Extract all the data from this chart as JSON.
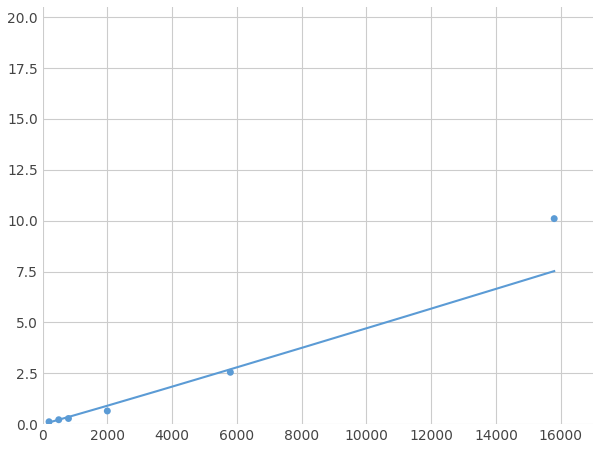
{
  "x": [
    200,
    500,
    800,
    2000,
    5800,
    15800
  ],
  "y": [
    0.12,
    0.22,
    0.28,
    0.65,
    2.55,
    10.1
  ],
  "line_color": "#5b9bd5",
  "marker_color": "#5b9bd5",
  "marker_size": 5,
  "line_width": 1.5,
  "xlim": [
    0,
    17000
  ],
  "ylim": [
    0,
    20.5
  ],
  "xticks": [
    0,
    2000,
    4000,
    6000,
    8000,
    10000,
    12000,
    14000,
    16000
  ],
  "yticks": [
    0.0,
    2.5,
    5.0,
    7.5,
    10.0,
    12.5,
    15.0,
    17.5,
    20.0
  ],
  "grid_color": "#cccccc",
  "background_color": "#ffffff",
  "figsize": [
    6.0,
    4.5
  ],
  "dpi": 100
}
